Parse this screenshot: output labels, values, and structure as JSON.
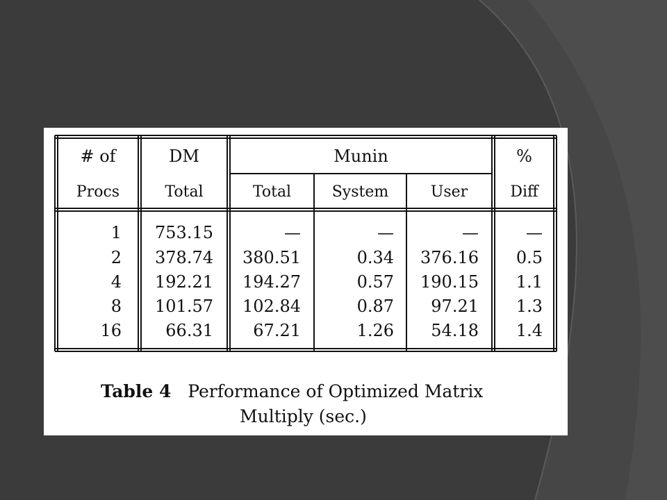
{
  "table": {
    "header_top": {
      "procs": "# of",
      "dm": "DM",
      "munin": "Munin",
      "pct": "%"
    },
    "header_sub": {
      "procs": "Procs",
      "dm_total": "Total",
      "munin_total": "Total",
      "munin_system": "System",
      "munin_user": "User",
      "diff": "Diff"
    },
    "rows": [
      {
        "procs": "1",
        "dm_total": "753.15",
        "munin_total": "—",
        "system": "—",
        "user": "—",
        "diff": "—"
      },
      {
        "procs": "2",
        "dm_total": "378.74",
        "munin_total": "380.51",
        "system": "0.34",
        "user": "376.16",
        "diff": "0.5"
      },
      {
        "procs": "4",
        "dm_total": "192.21",
        "munin_total": "194.27",
        "system": "0.57",
        "user": "190.15",
        "diff": "1.1"
      },
      {
        "procs": "8",
        "dm_total": "101.57",
        "munin_total": "102.84",
        "system": "0.87",
        "user": "97.21",
        "diff": "1.3"
      },
      {
        "procs": "16",
        "dm_total": "66.31",
        "munin_total": "67.21",
        "system": "1.26",
        "user": "54.18",
        "diff": "1.4"
      }
    ]
  },
  "caption": {
    "label": "Table 4",
    "line1": "Performance of Optimized Matrix",
    "line2": "Multiply (sec.)"
  },
  "colors": {
    "slide_background": "#3b3b3b",
    "paper": "#ffffff",
    "ink": "#111111"
  }
}
